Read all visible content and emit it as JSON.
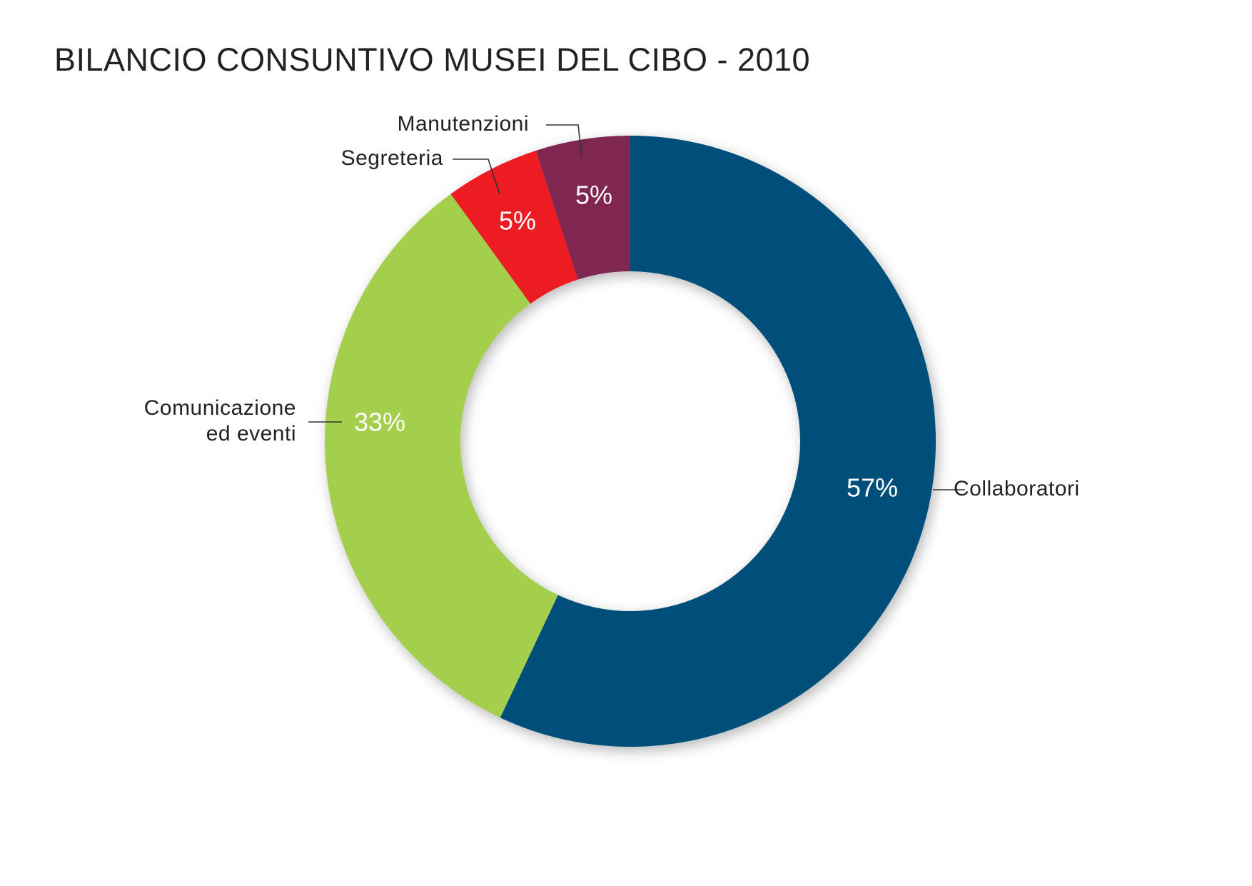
{
  "chart_data": {
    "type": "pie",
    "variant": "donut",
    "title": "BILANCIO CONSUNTIVO MUSEI DEL CIBO - 2010",
    "start": "12 o'clock",
    "direction": "clockwise",
    "legend": "none (direct labels with leader lines)",
    "slices": [
      {
        "label": "Collaboratori",
        "value": 57,
        "value_label": "57%",
        "color": "#05507a"
      },
      {
        "label": "Comunicazione ed eventi",
        "label_lines": [
          "Comunicazione",
          "ed eventi"
        ],
        "value": 33,
        "value_label": "33%",
        "color": "#a4cf4e"
      },
      {
        "label": "Segreteria",
        "value": 5,
        "value_label": "5%",
        "color": "#ec1b23"
      },
      {
        "label": "Manutenzioni",
        "value": 5,
        "value_label": "5%",
        "color": "#7f2651"
      }
    ]
  }
}
